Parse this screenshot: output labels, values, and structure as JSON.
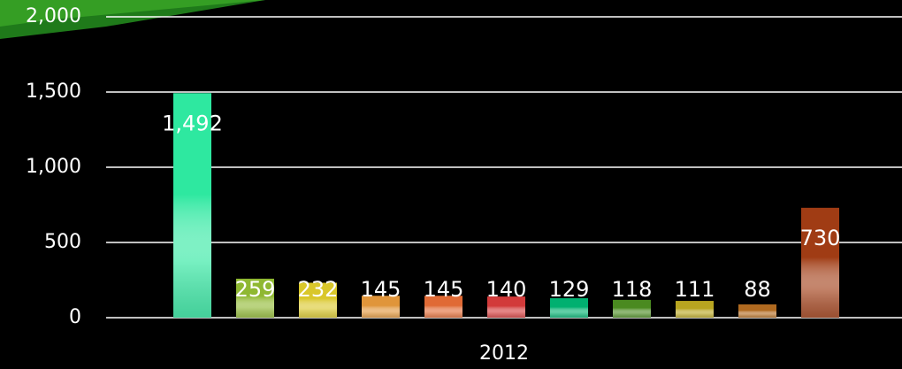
{
  "chart_data": {
    "type": "bar",
    "categories": [
      "2012"
    ],
    "series": [
      {
        "color": "#2ee8a0",
        "values": [
          1492
        ],
        "value_labels": [
          "1,492"
        ]
      },
      {
        "color": "#8fb832",
        "values": [
          259
        ]
      },
      {
        "color": "#d9c72a",
        "values": [
          232
        ]
      },
      {
        "color": "#e0953a",
        "values": [
          145
        ]
      },
      {
        "color": "#e06a35",
        "values": [
          145
        ]
      },
      {
        "color": "#d23a3a",
        "values": [
          140
        ]
      },
      {
        "color": "#00b070",
        "values": [
          129
        ]
      },
      {
        "color": "#4a8a20",
        "values": [
          118
        ]
      },
      {
        "color": "#b8a520",
        "values": [
          111
        ]
      },
      {
        "color": "#b06a20",
        "values": [
          88
        ]
      },
      {
        "color": "#a03c14",
        "values": [
          730
        ]
      }
    ],
    "ylim": [
      0,
      2000
    ],
    "yticks": [
      0,
      500,
      {
        "value": 1000,
        "label": "1,000"
      },
      {
        "value": 1500,
        "label": "1,500"
      },
      {
        "value": 2000,
        "label": "2,000"
      }
    ],
    "grid": true
  }
}
